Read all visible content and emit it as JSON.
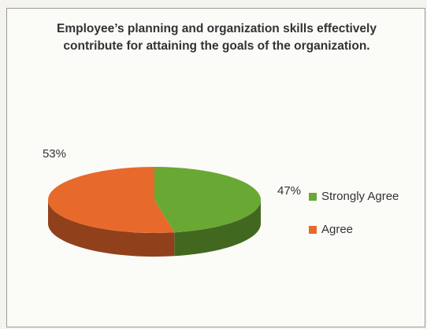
{
  "chart_data": {
    "type": "pie",
    "style": "3d",
    "title": "Employee’s planning and organization skills effectively contribute for attaining the goals of the organization.",
    "labels": [
      "Strongly Agree",
      "Agree"
    ],
    "values": [
      47,
      53
    ],
    "value_labels": [
      "47%",
      "53%"
    ],
    "colors": [
      "#6aa834",
      "#e8692c"
    ],
    "legend": "right"
  }
}
